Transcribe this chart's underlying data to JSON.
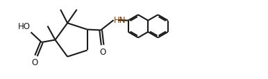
{
  "bg_color": "#ffffff",
  "line_color": "#1a1a1a",
  "hn_color": "#7a3a00",
  "bond_lw": 1.5,
  "font_size": 8.5,
  "fig_w": 3.86,
  "fig_h": 1.15,
  "dpi": 100,
  "xlim": [
    0.0,
    3.86
  ],
  "ylim": [
    0.0,
    1.15
  ]
}
